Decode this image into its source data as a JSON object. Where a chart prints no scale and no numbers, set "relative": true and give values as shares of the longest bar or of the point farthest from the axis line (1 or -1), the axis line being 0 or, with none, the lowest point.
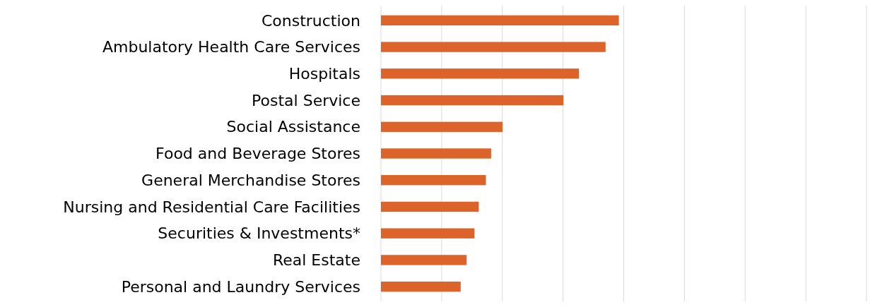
{
  "chart_data": {
    "type": "bar",
    "orientation": "horizontal",
    "relative": true,
    "grid": "x",
    "color": "#dc6329",
    "categories": [
      "Construction",
      "Ambulatory Health Care Services",
      "Hospitals",
      "Postal Service",
      "Social Assistance",
      "Food and Beverage Stores",
      "General Merchandise Stores",
      "Nursing and Residential Care Facilities",
      "Securities & Investments*",
      "Real Estate",
      "Personal and Laundry Services"
    ],
    "values": [
      1,
      0.944,
      0.832,
      0.767,
      0.511,
      0.463,
      0.441,
      0.411,
      0.393,
      0.36,
      0.335
    ]
  }
}
